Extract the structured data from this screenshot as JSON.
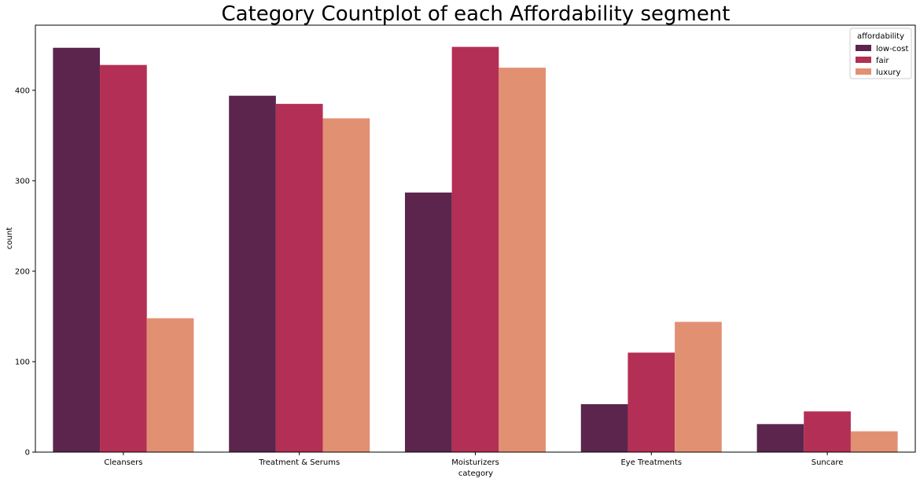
{
  "chart_data": {
    "type": "bar",
    "title": "Category Countplot of each Affordability segment",
    "xlabel": "category",
    "ylabel": "count",
    "categories": [
      "Cleansers",
      "Treatment & Serums",
      "Moisturizers",
      "Eye Treatments",
      "Suncare"
    ],
    "series": [
      {
        "name": "low-cost",
        "color": "#5b254d",
        "values": [
          447,
          394,
          287,
          53,
          31
        ]
      },
      {
        "name": "fair",
        "color": "#b32f55",
        "values": [
          428,
          385,
          448,
          110,
          45
        ]
      },
      {
        "name": "luxury",
        "color": "#e29072",
        "values": [
          148,
          369,
          425,
          144,
          23
        ]
      }
    ],
    "ylim": [
      0,
      472
    ],
    "yticks": [
      0,
      100,
      200,
      300,
      400
    ],
    "legend": {
      "title": "affordability",
      "placement": "top-right"
    },
    "grid": false
  }
}
